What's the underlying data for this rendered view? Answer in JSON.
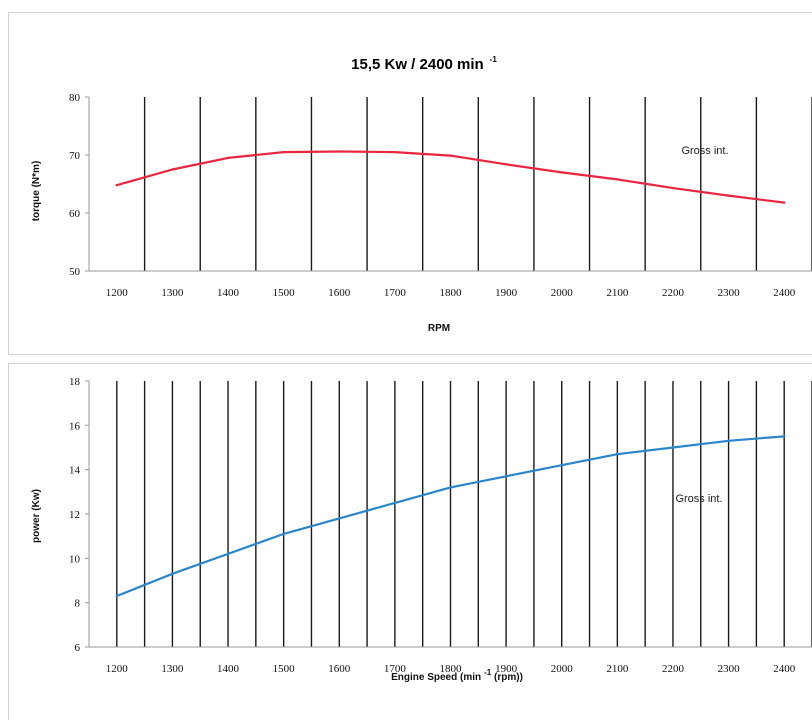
{
  "chart_data": [
    {
      "type": "line",
      "title": "15,5 Kw / 2400 min",
      "title_superscript": "-1",
      "xlabel": "RPM",
      "ylabel": "torque (N*m)",
      "x": [
        1200,
        1300,
        1400,
        1500,
        1600,
        1700,
        1800,
        1900,
        2000,
        2100,
        2200,
        2300,
        2400
      ],
      "series": [
        {
          "name": "Gross int.",
          "color": "#e8263f",
          "values": [
            64.8,
            67.5,
            69.5,
            70.5,
            70.6,
            70.5,
            69.9,
            68.4,
            67.0,
            65.8,
            64.3,
            63.0,
            61.8
          ]
        }
      ],
      "xlim": [
        1150,
        2450
      ],
      "ylim": [
        50,
        80
      ],
      "yticks": [
        50,
        60,
        70,
        80
      ],
      "xticks": [
        1200,
        1300,
        1400,
        1500,
        1600,
        1700,
        1800,
        1900,
        2000,
        2100,
        2200,
        2300,
        2400
      ],
      "vertical_lines_at": [
        1250,
        1350,
        1450,
        1550,
        1650,
        1750,
        1850,
        1950,
        2050,
        2150,
        2250,
        2350,
        2450
      ],
      "grid": "vertical",
      "legend": "right, inside plot",
      "annotation": "Gross int."
    },
    {
      "type": "line",
      "title": "",
      "xlabel": "Engine Speed (min",
      "xlabel_superscript": "-1",
      "xlabel_suffix": " (rpm))",
      "ylabel": "power (Kw)",
      "x": [
        1200,
        1300,
        1400,
        1500,
        1600,
        1700,
        1800,
        1900,
        2000,
        2100,
        2200,
        2300,
        2400
      ],
      "series": [
        {
          "name": "Gross int.",
          "color": "#2a86c8",
          "values": [
            8.3,
            9.3,
            10.2,
            11.1,
            11.8,
            12.5,
            13.2,
            13.7,
            14.2,
            14.7,
            15.0,
            15.3,
            15.5
          ]
        }
      ],
      "xlim": [
        1150,
        2450
      ],
      "ylim": [
        6,
        18
      ],
      "yticks": [
        6,
        8,
        10,
        12,
        14,
        16,
        18
      ],
      "xticks": [
        1200,
        1300,
        1400,
        1500,
        1600,
        1700,
        1800,
        1900,
        2000,
        2100,
        2200,
        2300,
        2400
      ],
      "vertical_lines_at": [
        1200,
        1250,
        1300,
        1350,
        1400,
        1450,
        1500,
        1550,
        1600,
        1650,
        1700,
        1750,
        1800,
        1850,
        1900,
        1950,
        2000,
        2050,
        2100,
        2150,
        2200,
        2250,
        2300,
        2350,
        2400,
        2450
      ],
      "grid": "vertical",
      "legend": "right, inside plot",
      "annotation": "Gross int."
    }
  ]
}
